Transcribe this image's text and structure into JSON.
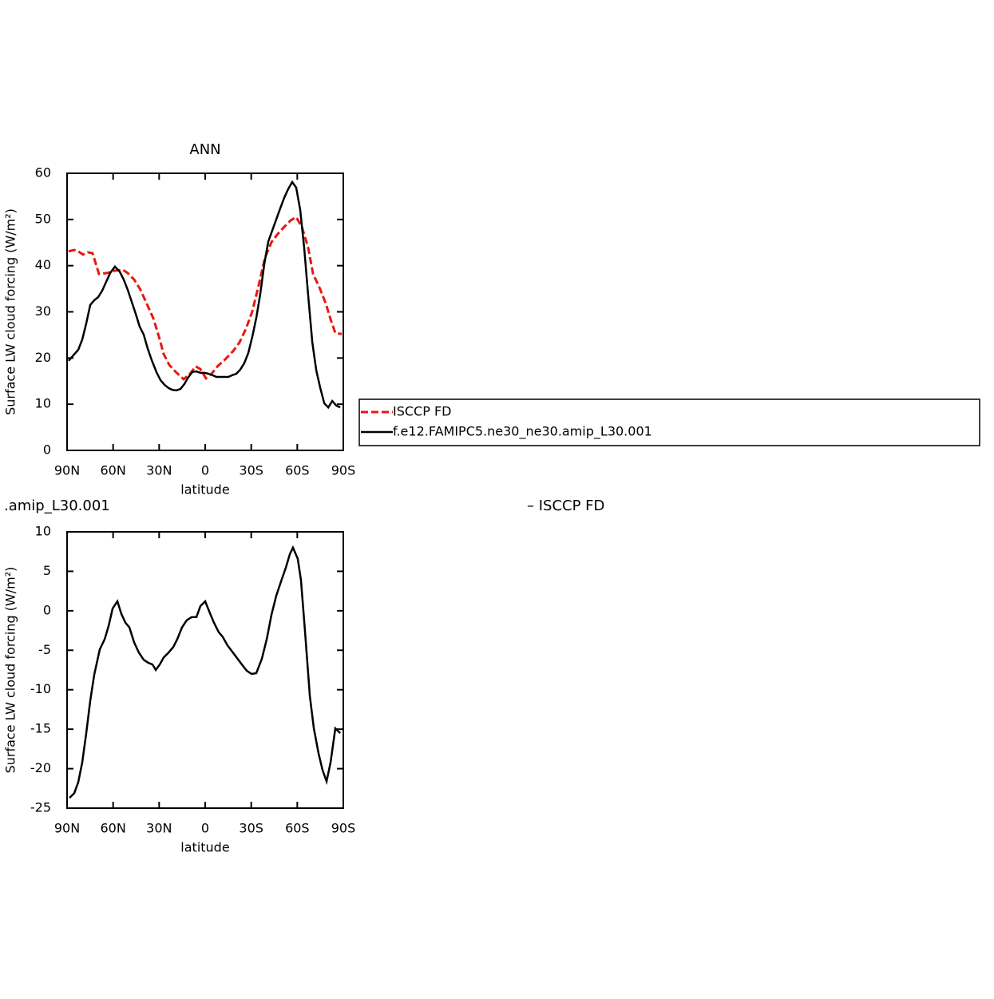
{
  "chart_data": [
    {
      "type": "line",
      "title": "ANN",
      "xlabel": "latitude",
      "ylabel": "Surface LW cloud forcing (W/m²)",
      "xlim": [
        90,
        -90
      ],
      "xticks": [
        {
          "value": 90,
          "label": "90N"
        },
        {
          "value": 60,
          "label": "60N"
        },
        {
          "value": 30,
          "label": "30N"
        },
        0,
        {
          "value": -30,
          "label": "30S"
        },
        {
          "value": -60,
          "label": "60S"
        },
        {
          "value": -90,
          "label": "90S"
        }
      ],
      "ylim": [
        0,
        60
      ],
      "yticks": [
        0,
        10,
        20,
        30,
        40,
        50,
        60
      ],
      "legend": "right",
      "series": [
        {
          "name": "ISCCP FD",
          "color": "#e8170f",
          "linestyle": "dashed",
          "x": [
            89,
            85.3,
            82.7,
            79.6,
            76.5,
            73.4,
            69.2,
            64,
            58.8,
            53.6,
            50.5,
            46.3,
            42.2,
            38,
            33.8,
            30.2,
            27.1,
            23.4,
            19.2,
            14,
            9.9,
            6.2,
            3.1,
            -0.5,
            -4.2,
            -8.3,
            -13,
            -18.2,
            -22.4,
            -26.5,
            -30.7,
            -34.9,
            -39,
            -43.2,
            -47.4,
            -51.5,
            -55.7,
            -59.3,
            -63,
            -67.1,
            -70.3,
            -74.4,
            -78.6,
            -81.7,
            -84.8,
            -89
          ],
          "values": [
            43.1,
            43.4,
            43.1,
            42.4,
            42.9,
            42.7,
            38.2,
            38.4,
            38.9,
            39.1,
            38.4,
            37,
            34.8,
            31.7,
            28.6,
            24.7,
            20.9,
            18.5,
            17,
            15.4,
            16.6,
            18.2,
            17.6,
            15.6,
            16.6,
            18.3,
            19.7,
            21.5,
            23.4,
            26.3,
            30.1,
            35.8,
            41.8,
            45.1,
            46.9,
            48.4,
            49.8,
            50.5,
            48.4,
            43.9,
            38.2,
            35.3,
            31.8,
            28.4,
            25.4,
            25.2
          ]
        },
        {
          "name": "f.e12.FAMIPC5.ne30_ne30.amip_L30.001",
          "color": "#000000",
          "linestyle": "solid",
          "x": [
            89,
            85.3,
            82.7,
            80.1,
            77.5,
            74.9,
            72.3,
            69.7,
            67.1,
            64.5,
            61.9,
            58.8,
            55.7,
            53.1,
            50.5,
            47.9,
            45.3,
            42.7,
            40.1,
            37.5,
            34.8,
            31.7,
            29.1,
            26.5,
            23.9,
            21.3,
            18.7,
            16.1,
            13.5,
            10.9,
            8.3,
            5.7,
            3.1,
            0.5,
            -2.1,
            -4.7,
            -7.3,
            -9.9,
            -12.5,
            -15.1,
            -17.7,
            -20.3,
            -22.9,
            -25.5,
            -28.1,
            -30.7,
            -33.3,
            -35.9,
            -38.5,
            -41.1,
            -43.7,
            -46.3,
            -48.9,
            -51.5,
            -54.1,
            -56.7,
            -59.3,
            -61.9,
            -64.5,
            -67.1,
            -69.8,
            -72.4,
            -75,
            -77.6,
            -80.2,
            -82.8,
            -85.4,
            -88
          ],
          "values": [
            19.4,
            20.8,
            21.8,
            24,
            27.5,
            31.5,
            32.5,
            33.2,
            34.6,
            36.5,
            38.4,
            39.8,
            38.7,
            37,
            34.8,
            32.2,
            29.6,
            26.8,
            25.1,
            22.1,
            19.5,
            16.9,
            15.2,
            14.2,
            13.5,
            13.1,
            13,
            13.3,
            14.4,
            15.9,
            17,
            17.1,
            16.8,
            16.8,
            16.6,
            16.3,
            15.9,
            15.9,
            15.9,
            15.9,
            16.3,
            16.6,
            17.5,
            18.9,
            21.1,
            24.6,
            28.7,
            33.9,
            40.3,
            45.2,
            47.6,
            50,
            52.4,
            54.7,
            56.6,
            58.1,
            56.9,
            52.1,
            43.9,
            33.6,
            23.4,
            17.3,
            13.5,
            10.2,
            9.3,
            10.7,
            9.7,
            9.3
          ]
        }
      ]
    },
    {
      "type": "line",
      "title": ".amip_L30.001",
      "subtitle": "– ISCCP FD",
      "xlabel": "latitude",
      "ylabel": "Surface LW cloud forcing (W/m²)",
      "xlim": [
        90,
        -90
      ],
      "xticks": [
        {
          "value": 90,
          "label": "90N"
        },
        {
          "value": 60,
          "label": "60N"
        },
        {
          "value": 30,
          "label": "30N"
        },
        0,
        {
          "value": -30,
          "label": "30S"
        },
        {
          "value": -60,
          "label": "60S"
        },
        {
          "value": -90,
          "label": "90S"
        }
      ],
      "ylim": [
        -25,
        10
      ],
      "yticks": [
        -25,
        -20,
        -15,
        -10,
        -5,
        0,
        5,
        10
      ],
      "series": [
        {
          "color": "#000000",
          "linestyle": "solid",
          "x": [
            88.4,
            85.3,
            82.7,
            80.1,
            77.5,
            74.9,
            72.3,
            68.7,
            65.5,
            62.9,
            60.3,
            57.2,
            54.6,
            52,
            49.4,
            46.3,
            43.2,
            40.1,
            37,
            34.3,
            32.2,
            29.6,
            27,
            23.9,
            20.8,
            18.2,
            15.1,
            12,
            8.8,
            5.7,
            3.1,
            0,
            -3.1,
            -5.7,
            -8.8,
            -11.4,
            -14.6,
            -17.7,
            -20.8,
            -23.9,
            -27.1,
            -30.2,
            -33.3,
            -36.9,
            -40.1,
            -43.2,
            -46.3,
            -49.4,
            -52.6,
            -55.2,
            -57.2,
            -60.3,
            -62.4,
            -65,
            -68.2,
            -70.8,
            -73.9,
            -76.5,
            -79.1,
            -81.7,
            -84.8,
            -88
          ],
          "values": [
            -23.7,
            -23.1,
            -21.7,
            -19.2,
            -15.5,
            -11.4,
            -8.1,
            -4.9,
            -3.6,
            -1.9,
            0.3,
            1.2,
            -0.4,
            -1.5,
            -2.1,
            -4,
            -5.3,
            -6.2,
            -6.6,
            -6.8,
            -7.5,
            -6.8,
            -5.9,
            -5.3,
            -4.6,
            -3.6,
            -2.1,
            -1.2,
            -0.8,
            -0.8,
            0.6,
            1.2,
            -0.3,
            -1.5,
            -2.7,
            -3.3,
            -4.4,
            -5.2,
            -6,
            -6.8,
            -7.6,
            -8,
            -7.9,
            -6.1,
            -3.6,
            -0.5,
            1.9,
            3.7,
            5.5,
            7.2,
            8,
            6.6,
            3.9,
            -2.5,
            -10.8,
            -14.9,
            -18.1,
            -20.2,
            -21.6,
            -19.2,
            -14.9,
            -15.5
          ]
        }
      ]
    }
  ]
}
